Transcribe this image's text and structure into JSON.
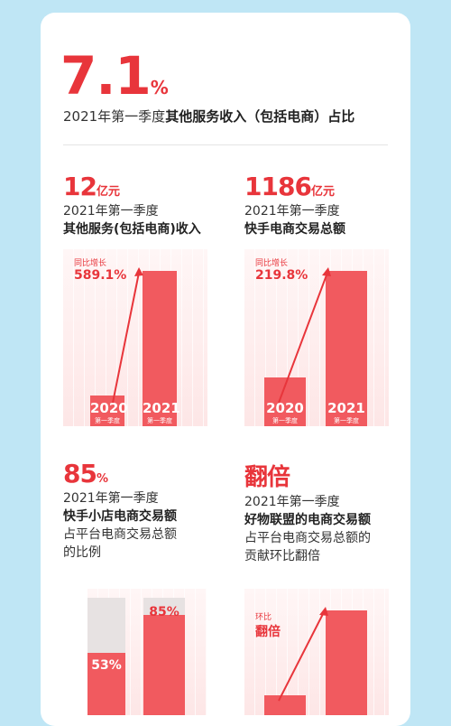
{
  "colors": {
    "accent": "#e8353b",
    "bar": "#f15a5f",
    "track": "#e7e2e2",
    "background": "#bfe6f5"
  },
  "headline": {
    "value": "7.1",
    "unit": "%",
    "caption_prefix": "2021年第一季度",
    "caption_bold": "其他服务收入（包括电商）占比"
  },
  "stats": [
    {
      "value": "12",
      "unit": "亿元",
      "line1": "2021年第一季度",
      "line2": "其他服务(包括电商)收入"
    },
    {
      "value": "1186",
      "unit": "亿元",
      "line1": "2021年第一季度",
      "line2": "快手电商交易总额"
    },
    {
      "value": "85",
      "unit": "%",
      "line1": "2021年第一季度",
      "line2": "快手小店电商交易额",
      "line3": "占平台电商交易总额",
      "line4": "的比例"
    },
    {
      "value": "翻倍",
      "unit": "",
      "line1": "2021年第一季度",
      "line2": "好物联盟的电商交易额",
      "line3": "占平台电商交易总额的",
      "line4": "贡献环比翻倍"
    }
  ],
  "chart_data": [
    {
      "type": "bar",
      "categories": [
        "2020 第一季度",
        "2021 第一季度"
      ],
      "category_year": [
        "2020",
        "2021"
      ],
      "category_sub": [
        "第一季度",
        "第一季度"
      ],
      "values": [
        1.74,
        12
      ],
      "annotation": {
        "caption": "同比增长",
        "value": "589.1%"
      }
    },
    {
      "type": "bar",
      "categories": [
        "2020 第一季度",
        "2021 第一季度"
      ],
      "category_year": [
        "2020",
        "2021"
      ],
      "category_sub": [
        "第一季度",
        "第一季度"
      ],
      "values": [
        370.7,
        1186
      ],
      "annotation": {
        "caption": "同比增长",
        "value": "219.8%"
      }
    },
    {
      "type": "bar",
      "values": [
        53,
        85
      ],
      "value_labels": [
        "53%",
        "85%"
      ],
      "ylim": [
        0,
        100
      ]
    },
    {
      "type": "bar",
      "annotation": {
        "caption": "环比",
        "value": "翻倍"
      }
    }
  ]
}
